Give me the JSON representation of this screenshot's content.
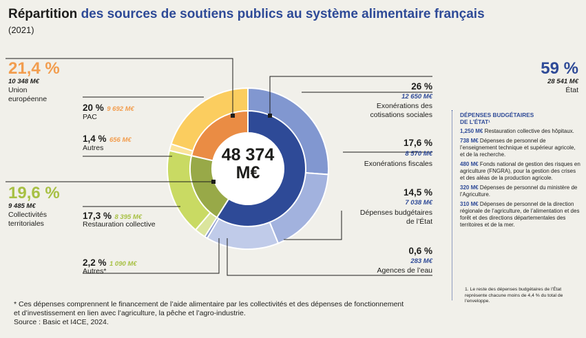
{
  "header": {
    "title_bold": "Répartition",
    "title_rest": "des sources de soutiens publics au système alimentaire français",
    "year": "(2021)"
  },
  "center_total": {
    "line1": "48 374",
    "line2": "M€"
  },
  "groups": {
    "eu": {
      "pct": "21,4 %",
      "amount": "10 348 M€",
      "line1": "Union",
      "line2": "européenne",
      "color": "#f29d4e"
    },
    "ct": {
      "pct": "19,6 %",
      "amount": "9 485 M€",
      "line1": "Collectivités",
      "line2": "territoriales",
      "color": "#a7c043"
    },
    "st": {
      "pct": "59 %",
      "amount": "28 541 M€",
      "line1": "État",
      "color": "#2e4a97"
    }
  },
  "segments": {
    "pac": {
      "pct": "20 %",
      "amount": "9 692 M€",
      "label": "PAC"
    },
    "eu_autres": {
      "pct": "1,4 %",
      "amount": "656 M€",
      "label": "Autres"
    },
    "resto": {
      "pct": "17,3 %",
      "amount": "8 395 M€",
      "label": "Restauration collective"
    },
    "ct_autres": {
      "pct": "2,2 %",
      "amount": "1 090 M€",
      "label": "Autres*"
    },
    "exo_cot": {
      "pct": "26 %",
      "amount": "12 650 M€",
      "line1": "Exonérations des",
      "line2": "cotisations sociales"
    },
    "exo_fisc": {
      "pct": "17,6 %",
      "amount": "8 570 M€",
      "line1": "Exonérations fiscales"
    },
    "dep_bud": {
      "pct": "14,5 %",
      "amount": "7 038 M€",
      "line1": "Dépenses budgétaires",
      "line2": "de l’État"
    },
    "agences": {
      "pct": "0,6 %",
      "amount": "283 M€",
      "line1": "Agences de l’eau"
    }
  },
  "sidebar": {
    "title_line1": "DÉPENSES BUDGÉTAIRES",
    "title_line2": "DE L’ÉTAT¹",
    "items": [
      {
        "amount": "1,250 M€",
        "text": "Restauration collective des hôpitaux."
      },
      {
        "amount": "738 M€",
        "text": "Dépenses de personnel de l’enseignement technique et supérieur agricole, et de la recherche."
      },
      {
        "amount": "480 M€",
        "text": "Fonds national de gestion des risques en agriculture (FNGRA), pour la gestion des crises et des aléas de la production agricole."
      },
      {
        "amount": "320 M€",
        "text": "Dépenses de personnel du ministère de l’Agriculture."
      },
      {
        "amount": "310 M€",
        "text": "Dépenses de personnel de la direction régionale de l’agriculture, de l’alimentation et des forêt et des directions départementales des territoires et de la mer."
      }
    ],
    "footnote": "1. Le reste des dépenses budgétaires de l’État représente chacune moins de 4,4 % du total de l’enveloppe."
  },
  "footer": {
    "line1": "* Ces dépenses comprennent le financement de l’aide alimentaire par les collectivités et des dépenses de fonctionnement",
    "line2": "et d’investissement en lien avec l’agriculture, la pêche et l’agro-industrie.",
    "line3": "Source : Basic et I4CE, 2024."
  },
  "chart_data": {
    "type": "pie",
    "title": "Répartition des sources de soutiens publics au système alimentaire français",
    "total": 48374,
    "unit": "M€",
    "inner_ring": [
      {
        "name": "État",
        "value": 28541,
        "color": "#2e4a97"
      },
      {
        "name": "Collectivités territoriales",
        "value": 9485,
        "color": "#98a948"
      },
      {
        "name": "Union européenne",
        "value": 10348,
        "color": "#ea8c44"
      }
    ],
    "outer_ring": [
      {
        "name": "Exonérations des cotisations sociales",
        "value": 12650,
        "color": "#8197d0"
      },
      {
        "name": "Exonérations fiscales",
        "value": 8570,
        "color": "#a2b2de"
      },
      {
        "name": "Dépenses budgétaires de l’État",
        "value": 7038,
        "color": "#c0cbe9"
      },
      {
        "name": "Agences de l’eau",
        "value": 283,
        "color": "#8394c9"
      },
      {
        "name": "Autres*",
        "value": 1090,
        "color": "#dbe59d"
      },
      {
        "name": "Restauration collective",
        "value": 8395,
        "color": "#c9da63"
      },
      {
        "name": "Autres",
        "value": 656,
        "color": "#fbe39a"
      },
      {
        "name": "PAC",
        "value": 9692,
        "color": "#fbcd5f"
      }
    ]
  }
}
